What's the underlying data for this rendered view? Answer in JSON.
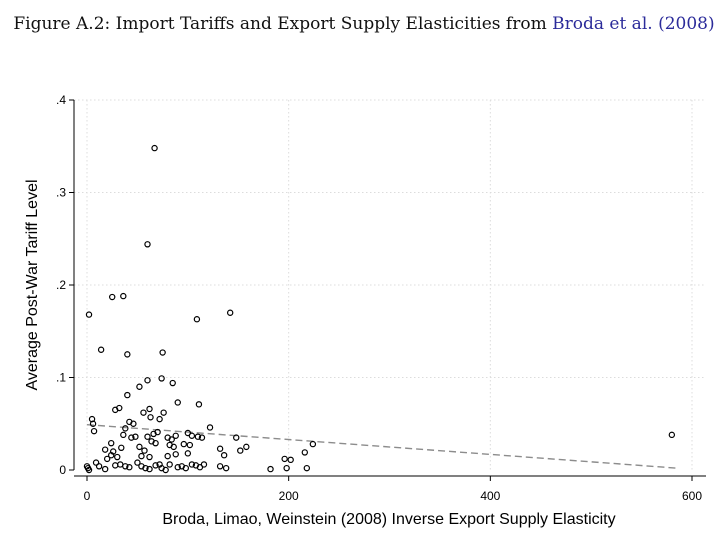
{
  "figure": {
    "caption_prefix": "Figure A.2: Import Tariffs and Export Supply Elasticities from ",
    "citation_authors": "Broda et al.",
    "citation_open": "(",
    "citation_year": "2008",
    "citation_close": ")"
  },
  "colors": {
    "accent": "#2b2b9a",
    "marker": "#000000",
    "fit_line": "#8c8c8c",
    "grid": "#dcdcdc"
  },
  "chart_data": {
    "type": "scatter",
    "title": "",
    "xlabel": "Broda, Limao, Weinstein (2008) Inverse Export Supply Elasticity",
    "ylabel": "Average Post-War Tariff Level",
    "xlim": [
      0,
      600
    ],
    "ylim": [
      0,
      0.4
    ],
    "x_ticks": [
      0,
      200,
      400,
      600
    ],
    "x_tick_labels": [
      "0",
      "200",
      "400",
      "600"
    ],
    "y_ticks": [
      0,
      0.1,
      0.2,
      0.3,
      0.4
    ],
    "y_tick_labels": [
      "0",
      ".1",
      ".2",
      ".3",
      ".4"
    ],
    "grid": true,
    "marker": "hollow-circle",
    "fit_line": {
      "style": "dashed",
      "x": [
        0,
        585
      ],
      "y": [
        0.049,
        0.002
      ]
    },
    "points": [
      [
        2,
        0.168
      ],
      [
        5,
        0.055
      ],
      [
        6,
        0.05
      ],
      [
        7,
        0.042
      ],
      [
        9,
        0.008
      ],
      [
        14,
        0.13
      ],
      [
        25,
        0.187
      ],
      [
        36,
        0.188
      ],
      [
        40,
        0.125
      ],
      [
        67,
        0.348
      ],
      [
        60,
        0.244
      ],
      [
        75,
        0.127
      ],
      [
        109,
        0.163
      ],
      [
        142,
        0.17
      ],
      [
        40,
        0.081
      ],
      [
        52,
        0.09
      ],
      [
        60,
        0.097
      ],
      [
        74,
        0.099
      ],
      [
        85,
        0.094
      ],
      [
        90,
        0.073
      ],
      [
        111,
        0.071
      ],
      [
        28,
        0.065
      ],
      [
        32,
        0.067
      ],
      [
        56,
        0.062
      ],
      [
        62,
        0.066
      ],
      [
        76,
        0.062
      ],
      [
        72,
        0.055
      ],
      [
        63,
        0.057
      ],
      [
        42,
        0.052
      ],
      [
        38,
        0.045
      ],
      [
        46,
        0.05
      ],
      [
        36,
        0.038
      ],
      [
        44,
        0.035
      ],
      [
        48,
        0.036
      ],
      [
        60,
        0.036
      ],
      [
        66,
        0.039
      ],
      [
        70,
        0.041
      ],
      [
        80,
        0.035
      ],
      [
        84,
        0.033
      ],
      [
        88,
        0.037
      ],
      [
        100,
        0.04
      ],
      [
        104,
        0.037
      ],
      [
        110,
        0.036
      ],
      [
        114,
        0.035
      ],
      [
        122,
        0.046
      ],
      [
        148,
        0.035
      ],
      [
        24,
        0.029
      ],
      [
        18,
        0.022
      ],
      [
        26,
        0.02
      ],
      [
        34,
        0.024
      ],
      [
        52,
        0.025
      ],
      [
        57,
        0.021
      ],
      [
        64,
        0.031
      ],
      [
        68,
        0.029
      ],
      [
        82,
        0.027
      ],
      [
        86,
        0.025
      ],
      [
        96,
        0.028
      ],
      [
        102,
        0.027
      ],
      [
        132,
        0.023
      ],
      [
        152,
        0.021
      ],
      [
        158,
        0.025
      ],
      [
        20,
        0.012
      ],
      [
        24,
        0.016
      ],
      [
        30,
        0.014
      ],
      [
        54,
        0.015
      ],
      [
        62,
        0.014
      ],
      [
        80,
        0.015
      ],
      [
        88,
        0.017
      ],
      [
        100,
        0.018
      ],
      [
        136,
        0.016
      ],
      [
        0,
        0.004
      ],
      [
        1,
        0.002
      ],
      [
        2,
        0.0
      ],
      [
        12,
        0.004
      ],
      [
        18,
        0.001
      ],
      [
        28,
        0.005
      ],
      [
        33,
        0.006
      ],
      [
        38,
        0.004
      ],
      [
        42,
        0.003
      ],
      [
        50,
        0.008
      ],
      [
        54,
        0.004
      ],
      [
        58,
        0.002
      ],
      [
        62,
        0.001
      ],
      [
        68,
        0.005
      ],
      [
        72,
        0.006
      ],
      [
        74,
        0.002
      ],
      [
        78,
        0.0
      ],
      [
        82,
        0.006
      ],
      [
        90,
        0.003
      ],
      [
        94,
        0.004
      ],
      [
        98,
        0.002
      ],
      [
        104,
        0.006
      ],
      [
        108,
        0.005
      ],
      [
        112,
        0.003
      ],
      [
        116,
        0.006
      ],
      [
        132,
        0.004
      ],
      [
        138,
        0.002
      ],
      [
        182,
        0.001
      ],
      [
        196,
        0.012
      ],
      [
        202,
        0.011
      ],
      [
        198,
        0.002
      ],
      [
        216,
        0.019
      ],
      [
        218,
        0.002
      ],
      [
        224,
        0.028
      ],
      [
        580,
        0.038
      ]
    ]
  }
}
